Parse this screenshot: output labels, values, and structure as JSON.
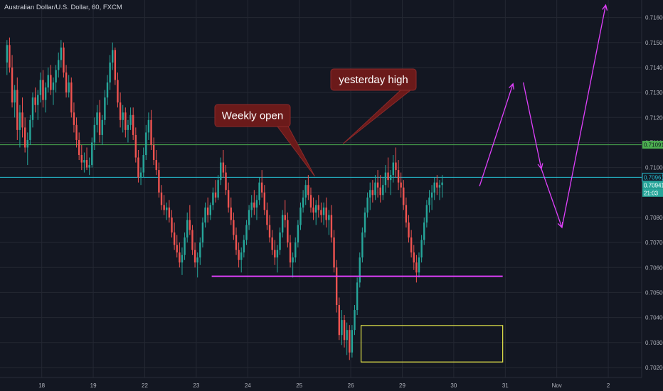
{
  "header": {
    "title": "Australian Dollar/U.S. Dollar, 60, FXCM"
  },
  "colors": {
    "background": "#131722",
    "grid": "#242833",
    "axis_text": "#b2b5be",
    "up": "#26a69a",
    "down": "#ef5350",
    "support": "#e040fb",
    "forecast_arrow": "#e040fb",
    "green_level": "#4caf50",
    "cyan_level": "#26c6da",
    "box": "#e6e64a",
    "callout_fill": "#6b1a1a",
    "callout_border": "#8c2a2a"
  },
  "chart_data": {
    "type": "candlestick",
    "title": "Australian Dollar/U.S. Dollar, 60, FXCM",
    "y_ticks": [
      0.702,
      0.703,
      0.704,
      0.705,
      0.706,
      0.707,
      0.708,
      0.709,
      0.71,
      0.711,
      0.712,
      0.713,
      0.714,
      0.715,
      0.716
    ],
    "y_tick_labels": [
      "0.70200",
      "0.70300",
      "0.70400",
      "0.70500",
      "0.70600",
      "0.70700",
      "0.70800",
      "0.70900",
      "0.71000",
      "0.71100",
      "0.71200",
      "0.71300",
      "0.71400",
      "0.71500",
      "0.71600"
    ],
    "ylim": [
      0.7016,
      0.7167
    ],
    "x_tick_labels": [
      "18",
      "19",
      "22",
      "23",
      "24",
      "25",
      "26",
      "29",
      "30",
      "31",
      "Nov",
      "2"
    ],
    "x_ticks_bar_index": [
      14,
      34,
      54,
      74,
      94,
      114,
      134,
      154,
      174,
      194,
      214,
      234
    ],
    "price_badges": [
      {
        "label": "0.71091",
        "value": 0.71091,
        "role": "green-level"
      },
      {
        "label": "0.70961",
        "value": 0.70961,
        "role": "cyan-level"
      },
      {
        "label": "0.70941",
        "value": 0.70941,
        "role": "last-price"
      },
      {
        "label": "21:03",
        "value": 0.70918,
        "role": "countdown"
      }
    ],
    "horizontal_lines": [
      {
        "name": "green-level",
        "value": 0.71091
      },
      {
        "name": "cyan-level",
        "value": 0.70961
      }
    ],
    "support_line": {
      "value": 0.70565,
      "from_bar": 80,
      "to_bar": 193
    },
    "zone_box": {
      "y_top": 0.70368,
      "y_bottom": 0.70222,
      "from_bar": 138,
      "to_bar": 193
    },
    "callouts": [
      {
        "text": "Weekly open",
        "anchor_bar": 120,
        "anchor_value": 0.70965
      },
      {
        "text": "yesterday high",
        "anchor_bar": 131,
        "anchor_value": 0.71095
      }
    ],
    "forecast_path": [
      {
        "bar": 184,
        "value": 0.70925
      },
      {
        "bar": 197,
        "value": 0.71335
      },
      {
        "bar": 201,
        "value": 0.7134
      },
      {
        "bar": 208,
        "value": 0.70995
      },
      {
        "bar": 216,
        "value": 0.7076
      },
      {
        "bar": 233,
        "value": 0.7165
      }
    ],
    "candles": [
      [
        0.7142,
        0.7151,
        0.7137,
        0.7149
      ],
      [
        0.7149,
        0.7152,
        0.7138,
        0.714
      ],
      [
        0.714,
        0.7145,
        0.7124,
        0.7126
      ],
      [
        0.7126,
        0.7133,
        0.712,
        0.7131
      ],
      [
        0.7131,
        0.7136,
        0.7111,
        0.7115
      ],
      [
        0.7115,
        0.7125,
        0.7108,
        0.7122
      ],
      [
        0.7122,
        0.7128,
        0.7112,
        0.7116
      ],
      [
        0.7116,
        0.712,
        0.7106,
        0.7108
      ],
      [
        0.7108,
        0.7114,
        0.7101,
        0.7111
      ],
      [
        0.7111,
        0.7121,
        0.7109,
        0.7119
      ],
      [
        0.7119,
        0.713,
        0.7116,
        0.7128
      ],
      [
        0.7128,
        0.7132,
        0.7122,
        0.7125
      ],
      [
        0.7125,
        0.7131,
        0.7119,
        0.7129
      ],
      [
        0.7129,
        0.7138,
        0.7126,
        0.7135
      ],
      [
        0.7135,
        0.7139,
        0.7124,
        0.7127
      ],
      [
        0.7127,
        0.7134,
        0.7122,
        0.7132
      ],
      [
        0.7132,
        0.714,
        0.713,
        0.7137
      ],
      [
        0.7137,
        0.7141,
        0.7129,
        0.7131
      ],
      [
        0.7131,
        0.7136,
        0.7125,
        0.7134
      ],
      [
        0.7134,
        0.7141,
        0.713,
        0.7139
      ],
      [
        0.7139,
        0.7146,
        0.7136,
        0.7143
      ],
      [
        0.7143,
        0.7151,
        0.714,
        0.7148
      ],
      [
        0.7148,
        0.715,
        0.7136,
        0.7138
      ],
      [
        0.7138,
        0.7141,
        0.7128,
        0.713
      ],
      [
        0.713,
        0.7137,
        0.7128,
        0.7134
      ],
      [
        0.7134,
        0.7136,
        0.712,
        0.7122
      ],
      [
        0.7122,
        0.7126,
        0.7114,
        0.7117
      ],
      [
        0.7117,
        0.712,
        0.7108,
        0.7111
      ],
      [
        0.7111,
        0.7114,
        0.7103,
        0.7105
      ],
      [
        0.7105,
        0.7109,
        0.7099,
        0.7102
      ],
      [
        0.7102,
        0.7106,
        0.7098,
        0.7103
      ],
      [
        0.7103,
        0.7108,
        0.7099,
        0.71
      ],
      [
        0.71,
        0.7104,
        0.7097,
        0.7101
      ],
      [
        0.7101,
        0.7112,
        0.71,
        0.711
      ],
      [
        0.711,
        0.712,
        0.7107,
        0.7117
      ],
      [
        0.7117,
        0.7125,
        0.7114,
        0.7122
      ],
      [
        0.7122,
        0.7127,
        0.711,
        0.7113
      ],
      [
        0.7113,
        0.7121,
        0.7109,
        0.7119
      ],
      [
        0.7119,
        0.7131,
        0.7117,
        0.7128
      ],
      [
        0.7128,
        0.7137,
        0.7125,
        0.7134
      ],
      [
        0.7134,
        0.7145,
        0.7131,
        0.7142
      ],
      [
        0.7142,
        0.715,
        0.7139,
        0.7147
      ],
      [
        0.7147,
        0.7148,
        0.7133,
        0.7135
      ],
      [
        0.7135,
        0.7138,
        0.7124,
        0.7126
      ],
      [
        0.7126,
        0.713,
        0.7116,
        0.7119
      ],
      [
        0.7119,
        0.7125,
        0.7114,
        0.7122
      ],
      [
        0.7122,
        0.7124,
        0.7112,
        0.7115
      ],
      [
        0.7115,
        0.7119,
        0.711,
        0.7117
      ],
      [
        0.7117,
        0.7124,
        0.7115,
        0.7121
      ],
      [
        0.7121,
        0.7124,
        0.7111,
        0.7113
      ],
      [
        0.7113,
        0.7116,
        0.7102,
        0.7104
      ],
      [
        0.7104,
        0.7107,
        0.7094,
        0.7096
      ],
      [
        0.7096,
        0.71,
        0.7093,
        0.7098
      ],
      [
        0.7098,
        0.7108,
        0.7096,
        0.7105
      ],
      [
        0.7105,
        0.7117,
        0.7103,
        0.7114
      ],
      [
        0.7114,
        0.7122,
        0.7111,
        0.7119
      ],
      [
        0.7119,
        0.7123,
        0.7107,
        0.7109
      ],
      [
        0.7109,
        0.7112,
        0.7101,
        0.7103
      ],
      [
        0.7103,
        0.7107,
        0.7097,
        0.7099
      ],
      [
        0.7099,
        0.7102,
        0.7088,
        0.709
      ],
      [
        0.709,
        0.7093,
        0.7083,
        0.7085
      ],
      [
        0.7085,
        0.7089,
        0.7081,
        0.7083
      ],
      [
        0.7083,
        0.7086,
        0.7079,
        0.7084
      ],
      [
        0.7084,
        0.7087,
        0.7078,
        0.708
      ],
      [
        0.708,
        0.7083,
        0.7072,
        0.7074
      ],
      [
        0.7074,
        0.7078,
        0.7067,
        0.7069
      ],
      [
        0.7069,
        0.7073,
        0.7064,
        0.7066
      ],
      [
        0.7066,
        0.707,
        0.706,
        0.7062
      ],
      [
        0.7062,
        0.7068,
        0.7057,
        0.7065
      ],
      [
        0.7065,
        0.7074,
        0.7063,
        0.7072
      ],
      [
        0.7072,
        0.7082,
        0.707,
        0.7079
      ],
      [
        0.7079,
        0.7085,
        0.7073,
        0.7075
      ],
      [
        0.7075,
        0.7077,
        0.7065,
        0.7067
      ],
      [
        0.7067,
        0.707,
        0.706,
        0.7062
      ],
      [
        0.7062,
        0.7066,
        0.7056,
        0.7064
      ],
      [
        0.7064,
        0.7072,
        0.7061,
        0.707
      ],
      [
        0.707,
        0.708,
        0.7068,
        0.7078
      ],
      [
        0.7078,
        0.7086,
        0.7076,
        0.7084
      ],
      [
        0.7084,
        0.7088,
        0.7078,
        0.7081
      ],
      [
        0.7081,
        0.7086,
        0.7079,
        0.7085
      ],
      [
        0.7085,
        0.7092,
        0.7083,
        0.709
      ],
      [
        0.709,
        0.7095,
        0.7086,
        0.7088
      ],
      [
        0.7088,
        0.7097,
        0.7087,
        0.7095
      ],
      [
        0.7095,
        0.7104,
        0.7093,
        0.7102
      ],
      [
        0.7102,
        0.7107,
        0.7096,
        0.7098
      ],
      [
        0.7098,
        0.7101,
        0.7089,
        0.7091
      ],
      [
        0.7091,
        0.7094,
        0.7082,
        0.7084
      ],
      [
        0.7084,
        0.7088,
        0.7077,
        0.7079
      ],
      [
        0.7079,
        0.7082,
        0.7071,
        0.7073
      ],
      [
        0.7073,
        0.7076,
        0.7065,
        0.7067
      ],
      [
        0.7067,
        0.707,
        0.706,
        0.7063
      ],
      [
        0.7063,
        0.7068,
        0.7058,
        0.7066
      ],
      [
        0.7066,
        0.7073,
        0.7064,
        0.7071
      ],
      [
        0.7071,
        0.7079,
        0.7069,
        0.7077
      ],
      [
        0.7077,
        0.7085,
        0.7075,
        0.7083
      ],
      [
        0.7083,
        0.7089,
        0.708,
        0.7086
      ],
      [
        0.7086,
        0.7091,
        0.7081,
        0.7084
      ],
      [
        0.7084,
        0.7089,
        0.7079,
        0.7087
      ],
      [
        0.7087,
        0.7096,
        0.7085,
        0.7094
      ],
      [
        0.7094,
        0.7099,
        0.7088,
        0.709
      ],
      [
        0.709,
        0.7093,
        0.7081,
        0.7083
      ],
      [
        0.7083,
        0.7086,
        0.7075,
        0.7077
      ],
      [
        0.7077,
        0.7081,
        0.707,
        0.7072
      ],
      [
        0.7072,
        0.7075,
        0.7065,
        0.7067
      ],
      [
        0.7067,
        0.7071,
        0.7061,
        0.7064
      ],
      [
        0.7064,
        0.7069,
        0.7058,
        0.7067
      ],
      [
        0.7067,
        0.7076,
        0.7065,
        0.7074
      ],
      [
        0.7074,
        0.7083,
        0.7072,
        0.7081
      ],
      [
        0.7081,
        0.7087,
        0.7076,
        0.7079
      ],
      [
        0.7079,
        0.7082,
        0.7068,
        0.707
      ],
      [
        0.707,
        0.7073,
        0.706,
        0.7062
      ],
      [
        0.7062,
        0.7066,
        0.7056,
        0.7064
      ],
      [
        0.7064,
        0.7072,
        0.7062,
        0.707
      ],
      [
        0.707,
        0.7079,
        0.7068,
        0.7077
      ],
      [
        0.7077,
        0.7086,
        0.7075,
        0.7084
      ],
      [
        0.7084,
        0.7091,
        0.7082,
        0.7088
      ],
      [
        0.7088,
        0.7095,
        0.7085,
        0.7093
      ],
      [
        0.7093,
        0.7097,
        0.7087,
        0.7089
      ],
      [
        0.7089,
        0.7092,
        0.7082,
        0.7084
      ],
      [
        0.7084,
        0.7088,
        0.7079,
        0.7082
      ],
      [
        0.7082,
        0.7087,
        0.7077,
        0.7085
      ],
      [
        0.7085,
        0.7089,
        0.708,
        0.7083
      ],
      [
        0.7083,
        0.7086,
        0.7078,
        0.7081
      ],
      [
        0.7081,
        0.7086,
        0.7077,
        0.7084
      ],
      [
        0.7084,
        0.7088,
        0.7076,
        0.7079
      ],
      [
        0.7079,
        0.7083,
        0.7073,
        0.7081
      ],
      [
        0.7081,
        0.7085,
        0.707,
        0.7072
      ],
      [
        0.7072,
        0.7075,
        0.7058,
        0.706
      ],
      [
        0.706,
        0.7063,
        0.7042,
        0.7045
      ],
      [
        0.7045,
        0.7048,
        0.7031,
        0.7033
      ],
      [
        0.7033,
        0.7043,
        0.7029,
        0.7039
      ],
      [
        0.7039,
        0.7041,
        0.7028,
        0.7031
      ],
      [
        0.7031,
        0.7038,
        0.7025,
        0.7035
      ],
      [
        0.7035,
        0.7037,
        0.7023,
        0.7026
      ],
      [
        0.7026,
        0.7037,
        0.7024,
        0.7035
      ],
      [
        0.7035,
        0.7045,
        0.7033,
        0.7043
      ],
      [
        0.7043,
        0.7056,
        0.7041,
        0.7054
      ],
      [
        0.7054,
        0.7066,
        0.7052,
        0.7064
      ],
      [
        0.7064,
        0.7076,
        0.7062,
        0.7074
      ],
      [
        0.7074,
        0.7084,
        0.7072,
        0.7082
      ],
      [
        0.7082,
        0.709,
        0.708,
        0.7088
      ],
      [
        0.7088,
        0.7094,
        0.7083,
        0.7091
      ],
      [
        0.7091,
        0.7095,
        0.7086,
        0.7089
      ],
      [
        0.7089,
        0.7097,
        0.7087,
        0.7094
      ],
      [
        0.7094,
        0.7099,
        0.7088,
        0.7092
      ],
      [
        0.7092,
        0.7097,
        0.7086,
        0.7089
      ],
      [
        0.7089,
        0.7096,
        0.7087,
        0.7093
      ],
      [
        0.7093,
        0.7101,
        0.709,
        0.7098
      ],
      [
        0.7098,
        0.7104,
        0.7092,
        0.7095
      ],
      [
        0.7095,
        0.7099,
        0.7089,
        0.7097
      ],
      [
        0.7097,
        0.7105,
        0.7094,
        0.7102
      ],
      [
        0.7102,
        0.7108,
        0.7096,
        0.7099
      ],
      [
        0.7099,
        0.7103,
        0.7091,
        0.7094
      ],
      [
        0.7094,
        0.7098,
        0.7088,
        0.7092
      ],
      [
        0.7092,
        0.7095,
        0.7083,
        0.7085
      ],
      [
        0.7085,
        0.7088,
        0.7076,
        0.7078
      ],
      [
        0.7078,
        0.7081,
        0.707,
        0.7072
      ],
      [
        0.7072,
        0.7075,
        0.7064,
        0.7066
      ],
      [
        0.7066,
        0.7069,
        0.7059,
        0.7062
      ],
      [
        0.7062,
        0.7065,
        0.7054,
        0.7058
      ],
      [
        0.7058,
        0.7066,
        0.7056,
        0.7064
      ],
      [
        0.7064,
        0.7073,
        0.7062,
        0.7071
      ],
      [
        0.7071,
        0.708,
        0.7069,
        0.7078
      ],
      [
        0.7078,
        0.7087,
        0.7076,
        0.7085
      ],
      [
        0.7085,
        0.7091,
        0.7082,
        0.7088
      ],
      [
        0.7088,
        0.7093,
        0.7083,
        0.709
      ],
      [
        0.709,
        0.7096,
        0.7087,
        0.7094
      ],
      [
        0.7094,
        0.7097,
        0.7089,
        0.7092
      ],
      [
        0.7092,
        0.7095,
        0.7087,
        0.7093
      ],
      [
        0.7093,
        0.7097,
        0.7088,
        0.7094
      ]
    ]
  }
}
